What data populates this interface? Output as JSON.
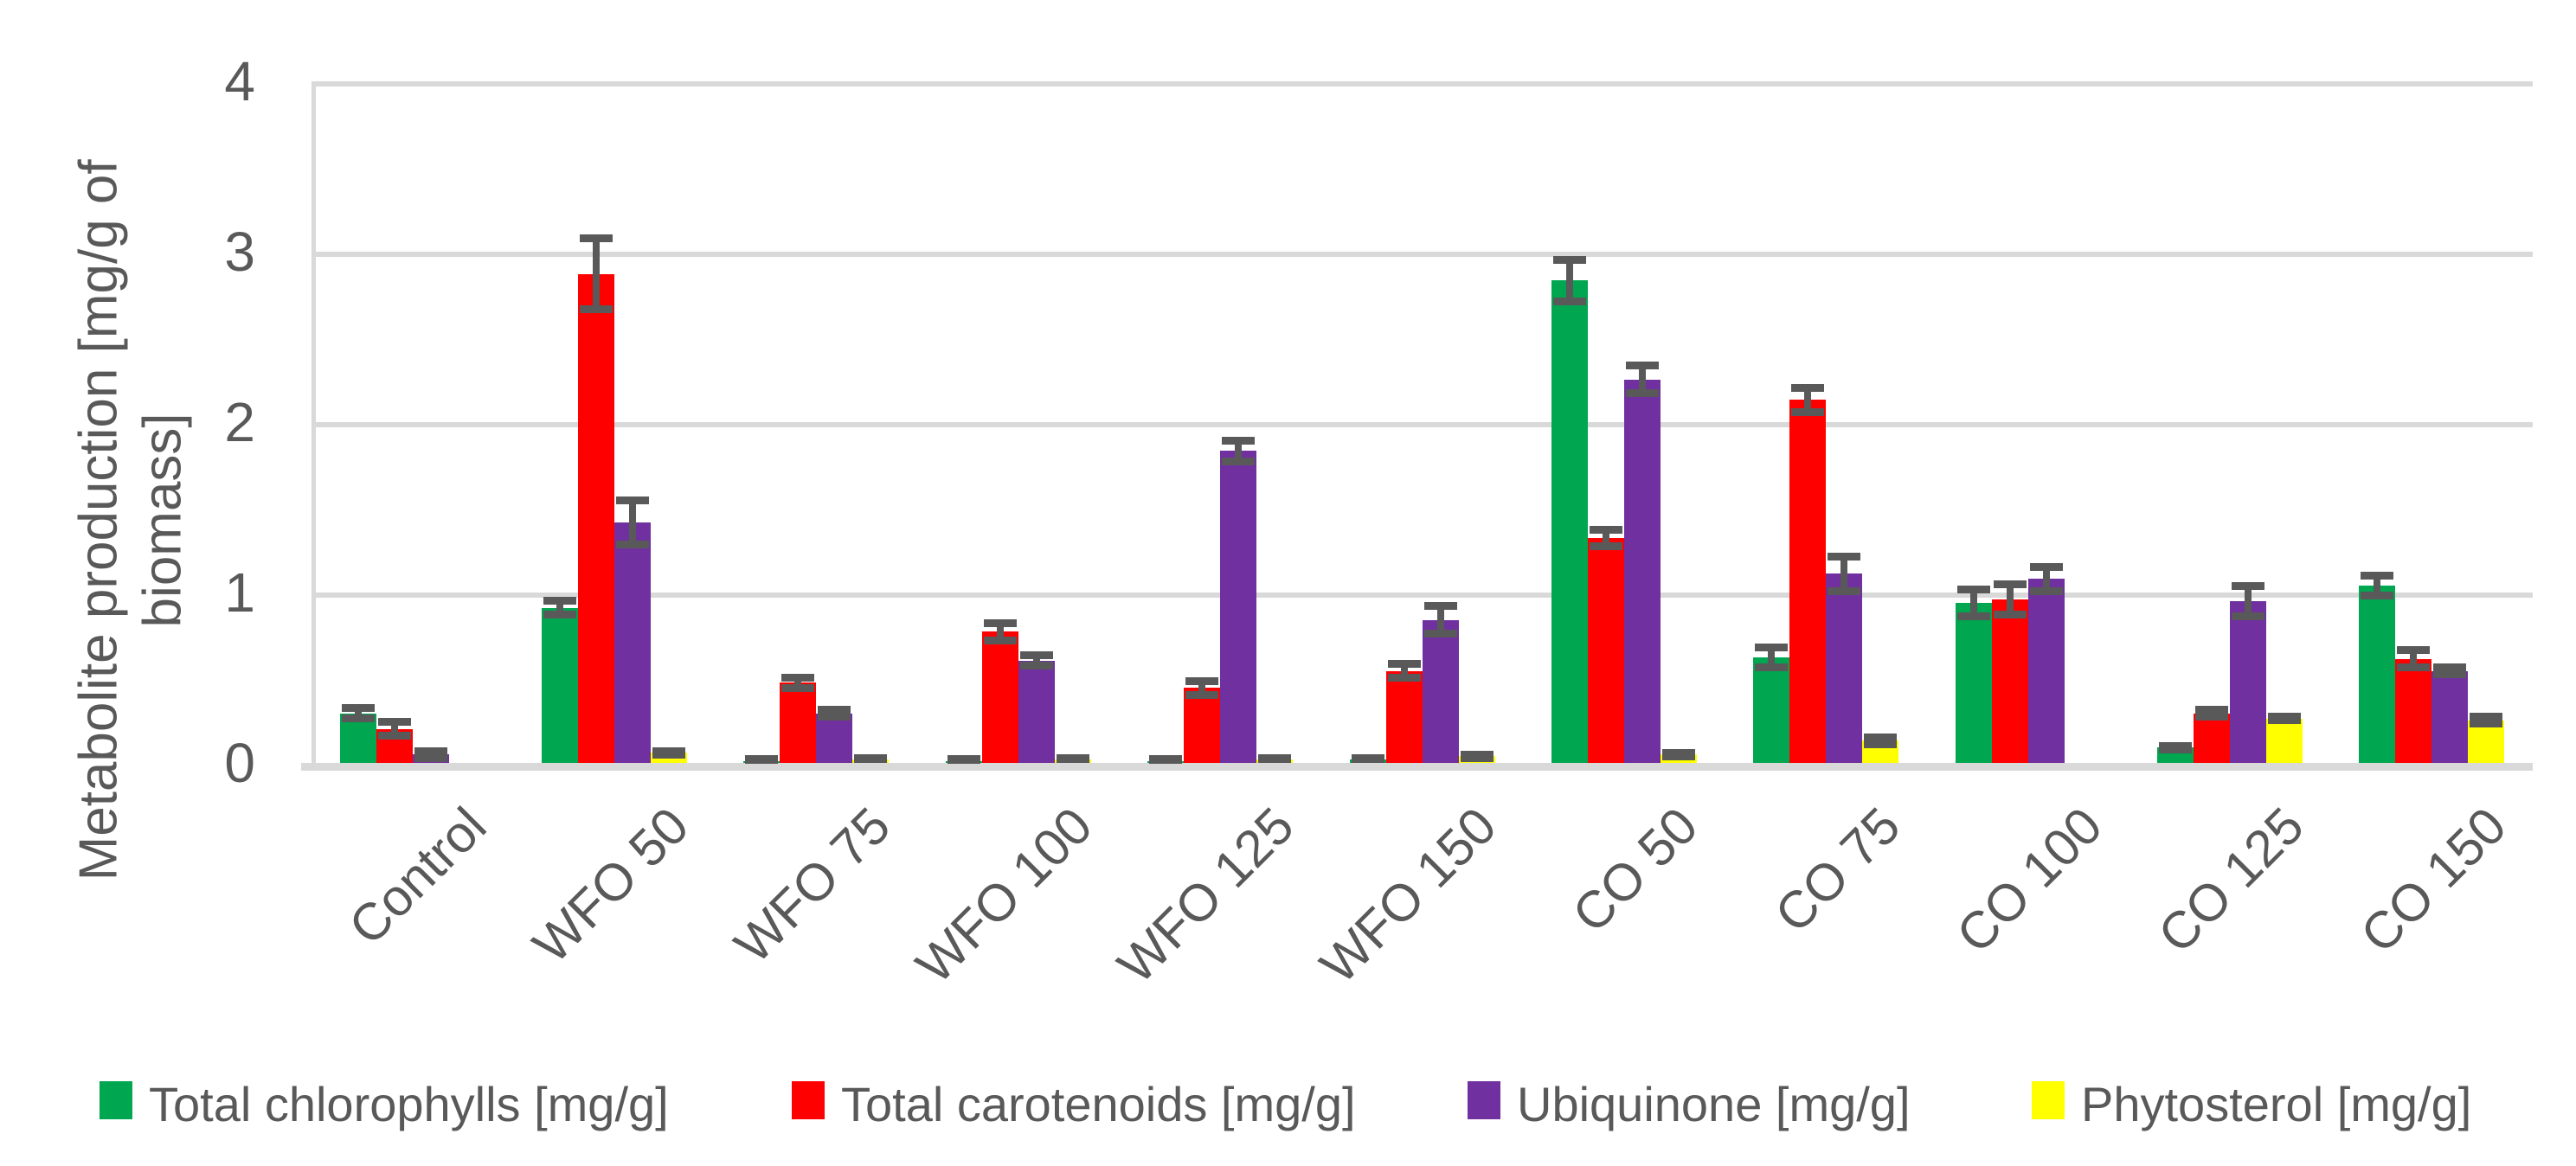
{
  "chart_data": {
    "type": "bar",
    "title": "",
    "xlabel": "",
    "ylabel": "Metabolite production [mg/g of biomass]",
    "ylim": [
      0,
      4
    ],
    "yticks": [
      "0",
      "1",
      "2",
      "3",
      "4"
    ],
    "grid": true,
    "legend_position": "bottom",
    "error_bars": true,
    "categories": [
      "Control",
      "WFO 50",
      "WFO 75",
      "WFO 100",
      "WFO 125",
      "WFO 150",
      "CO 50",
      "CO 75",
      "CO 100",
      "CO 125",
      "CO 150"
    ],
    "series": [
      {
        "name": "Total chlorophylls [mg/g]",
        "color": "#00A650",
        "values": [
          0.29,
          0.91,
          0.01,
          0.01,
          0.01,
          0.02,
          2.83,
          0.62,
          0.94,
          0.09,
          1.04
        ],
        "errors": [
          0.03,
          0.04,
          0.01,
          0.01,
          0.01,
          0.01,
          0.12,
          0.06,
          0.08,
          0.01,
          0.06
        ]
      },
      {
        "name": "Total carotenoids [mg/g]",
        "color": "#FF0000",
        "values": [
          0.2,
          2.87,
          0.47,
          0.77,
          0.44,
          0.54,
          1.32,
          2.13,
          0.96,
          0.29,
          0.61
        ],
        "errors": [
          0.04,
          0.21,
          0.03,
          0.05,
          0.04,
          0.04,
          0.05,
          0.07,
          0.09,
          0.02,
          0.05
        ]
      },
      {
        "name": "Ubiquinone [mg/g]",
        "color": "#7030A0",
        "values": [
          0.05,
          1.41,
          0.29,
          0.6,
          1.83,
          0.84,
          2.25,
          1.11,
          1.08,
          0.95,
          0.54
        ],
        "errors": [
          0.02,
          0.13,
          0.02,
          0.03,
          0.06,
          0.08,
          0.08,
          0.1,
          0.07,
          0.09,
          0.02
        ]
      },
      {
        "name": "Phytosterol [mg/g]",
        "color": "#FFFF00",
        "values": [
          null,
          0.06,
          0.02,
          0.02,
          0.02,
          0.04,
          0.05,
          0.13,
          null,
          0.26,
          0.25
        ],
        "errors": [
          null,
          0.01,
          0.01,
          0.01,
          0.01,
          0.01,
          0.01,
          0.02,
          null,
          0.01,
          0.02
        ]
      }
    ]
  },
  "colors": {
    "text": "#595959",
    "gridline": "#D9D9D9",
    "error_bar": "#595959",
    "background": "#FFFFFF"
  }
}
